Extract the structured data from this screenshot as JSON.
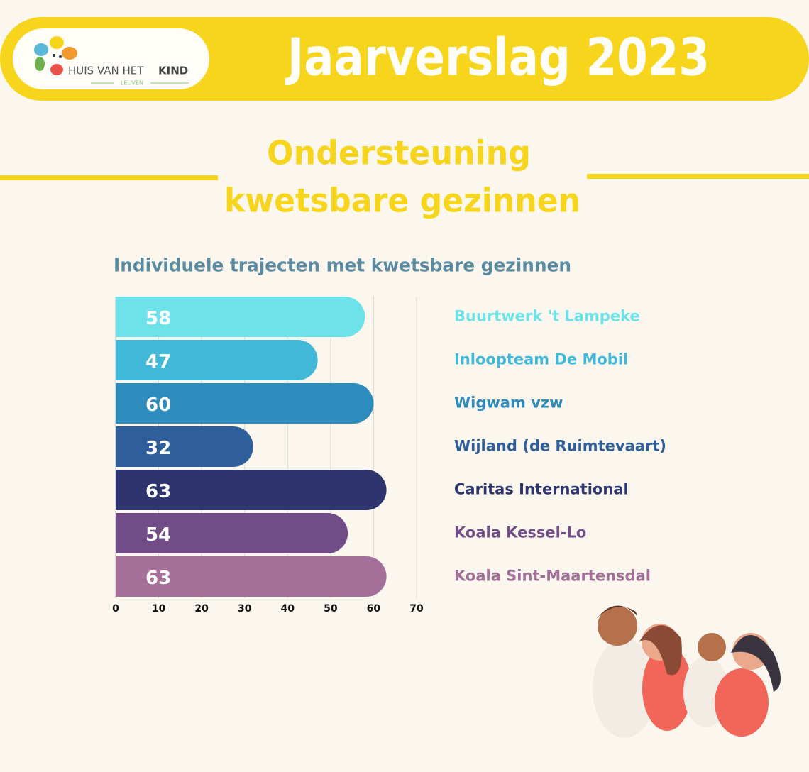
{
  "header": {
    "logo_name": [
      "HUIS VAN HET",
      "KIND"
    ],
    "logo_place": "LEUVEN",
    "title": "Jaarverslag 2023",
    "section_title": [
      "Ondersteuning",
      "kwetsbare gezinnen"
    ]
  },
  "chart_data": {
    "type": "hbar",
    "title": "Individuele trajecten met kwetsbare gezinnen",
    "categories": [
      "Buurtwerk 't Lampeke",
      "Inloopteam De Mobil",
      "Wigwam vzw",
      "Wijland (de Ruimtevaart)",
      "Caritas International",
      "Koala Kessel-Lo",
      "Koala Sint-Maartensdal"
    ],
    "values": [
      58,
      47,
      60,
      32,
      63,
      54,
      63
    ],
    "colors": [
      "#6de3e9",
      "#41b8d8",
      "#2d8bbd",
      "#2e5f9a",
      "#2e346e",
      "#714c86",
      "#a46f98"
    ],
    "xlim": [
      0,
      70
    ],
    "xticks": [
      0,
      10,
      20,
      30,
      40,
      50,
      60,
      70
    ],
    "grid": true
  }
}
